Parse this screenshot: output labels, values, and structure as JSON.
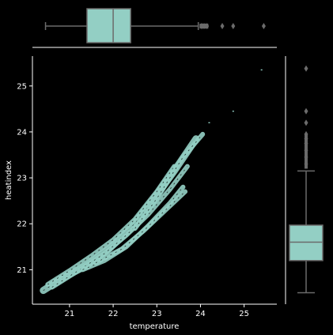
{
  "chart_data": {
    "type": "jointplot",
    "xlabel": "temperature",
    "ylabel": "heatindex",
    "xlim": [
      20.15,
      25.75
    ],
    "ylim": [
      20.25,
      25.65
    ],
    "xticks": [
      "21",
      "22",
      "23",
      "24",
      "25"
    ],
    "yticks": [
      "21",
      "22",
      "23",
      "24",
      "25"
    ],
    "colors": {
      "background": "#000000",
      "fill": "#93cfc4",
      "edge": "#6b6b6b",
      "spine": "#ffffff"
    },
    "marginal_x_box": {
      "whisker_low": 20.45,
      "q1": 21.4,
      "median": 22.0,
      "q3": 22.4,
      "whisker_high": 23.95,
      "outliers": [
        24.02,
        24.06,
        24.1,
        24.15,
        24.5,
        24.75,
        25.45
      ]
    },
    "marginal_y_box": {
      "whisker_low": 20.5,
      "q1": 21.2,
      "median": 21.6,
      "q3": 21.97,
      "whisker_high": 23.15,
      "outliers": [
        23.3,
        23.45,
        23.6,
        23.75,
        23.85,
        23.95,
        24.2,
        24.45,
        25.38
      ]
    },
    "joint_bands": [
      {
        "points": [
          [
            20.4,
            20.55
          ],
          [
            20.9,
            20.85
          ],
          [
            21.4,
            21.1
          ],
          [
            21.9,
            21.45
          ],
          [
            22.4,
            21.9
          ],
          [
            22.9,
            22.5
          ],
          [
            23.4,
            23.15
          ],
          [
            23.9,
            23.85
          ]
        ]
      },
      {
        "points": [
          [
            20.5,
            20.68
          ],
          [
            21.0,
            20.98
          ],
          [
            21.5,
            21.3
          ],
          [
            22.0,
            21.65
          ],
          [
            22.5,
            22.1
          ],
          [
            23.0,
            22.7
          ],
          [
            23.4,
            23.25
          ]
        ]
      },
      {
        "points": [
          [
            20.6,
            20.62
          ],
          [
            21.2,
            20.98
          ],
          [
            21.8,
            21.35
          ],
          [
            22.3,
            21.75
          ],
          [
            22.8,
            22.2
          ],
          [
            23.3,
            22.75
          ],
          [
            23.7,
            23.25
          ]
        ]
      },
      {
        "points": [
          [
            21.3,
            21.0
          ],
          [
            21.8,
            21.2
          ],
          [
            22.3,
            21.5
          ],
          [
            22.8,
            21.95
          ],
          [
            23.3,
            22.45
          ],
          [
            23.6,
            22.8
          ]
        ]
      },
      {
        "points": [
          [
            21.6,
            21.15
          ],
          [
            22.2,
            21.45
          ],
          [
            22.7,
            21.85
          ],
          [
            23.2,
            22.3
          ],
          [
            23.65,
            22.7
          ]
        ]
      },
      {
        "points": [
          [
            22.5,
            21.9
          ],
          [
            23.0,
            22.55
          ],
          [
            23.3,
            23.0
          ],
          [
            23.6,
            23.45
          ],
          [
            24.05,
            23.95
          ]
        ]
      }
    ],
    "joint_points": [
      [
        24.2,
        24.2
      ],
      [
        24.75,
        24.45
      ],
      [
        25.4,
        25.35
      ]
    ]
  }
}
